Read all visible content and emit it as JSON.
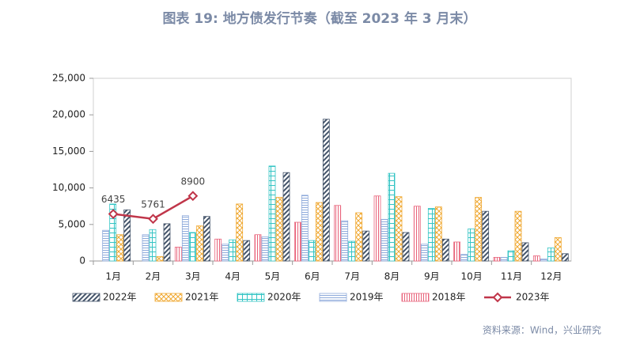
{
  "chart_data": {
    "type": "bar",
    "title": "图表 19: 地方债发行节奏（截至 2023 年 3 月末）",
    "source": "资料来源：Wind，兴业研究",
    "categories": [
      "1月",
      "2月",
      "3月",
      "4月",
      "5月",
      "6月",
      "7月",
      "8月",
      "9月",
      "10月",
      "11月",
      "12月"
    ],
    "series": [
      {
        "name": "2022年",
        "color": "#44546a",
        "values": [
          7000,
          5100,
          6100,
          2800,
          12100,
          19400,
          4100,
          3900,
          3000,
          6800,
          2500,
          1000
        ]
      },
      {
        "name": "2021年",
        "color": "#f0a830",
        "values": [
          3600,
          600,
          4800,
          7800,
          8700,
          8000,
          6600,
          8800,
          7400,
          8700,
          6800,
          3200
        ]
      },
      {
        "name": "2020年",
        "color": "#33c4c4",
        "values": [
          7800,
          4300,
          3900,
          2900,
          13000,
          2800,
          2700,
          12000,
          7200,
          4400,
          1400,
          1800
        ]
      },
      {
        "name": "2019年",
        "color": "#8eaadb",
        "values": [
          4200,
          3600,
          6200,
          2300,
          3300,
          9000,
          5500,
          5700,
          2300,
          900,
          500,
          300
        ]
      },
      {
        "name": "2018年",
        "color": "#e8637a",
        "values": [
          0,
          0,
          1900,
          3000,
          3600,
          5300,
          7600,
          8900,
          7500,
          2600,
          500,
          700
        ]
      },
      {
        "name": "2023年",
        "color": "#c0364a",
        "type": "line",
        "values": [
          6435,
          5761,
          8900,
          null,
          null,
          null,
          null,
          null,
          null,
          null,
          null,
          null
        ]
      }
    ],
    "ylim": [
      0,
      25000
    ],
    "yticks": [
      0,
      {
        "value": 5000,
        "label": "5,000"
      },
      {
        "value": 10000,
        "label": "10,000"
      },
      {
        "value": 15000,
        "label": "15,000"
      },
      {
        "value": 20000,
        "label": "20,000"
      },
      {
        "value": 25000,
        "label": "25,000"
      }
    ],
    "grid": false
  }
}
